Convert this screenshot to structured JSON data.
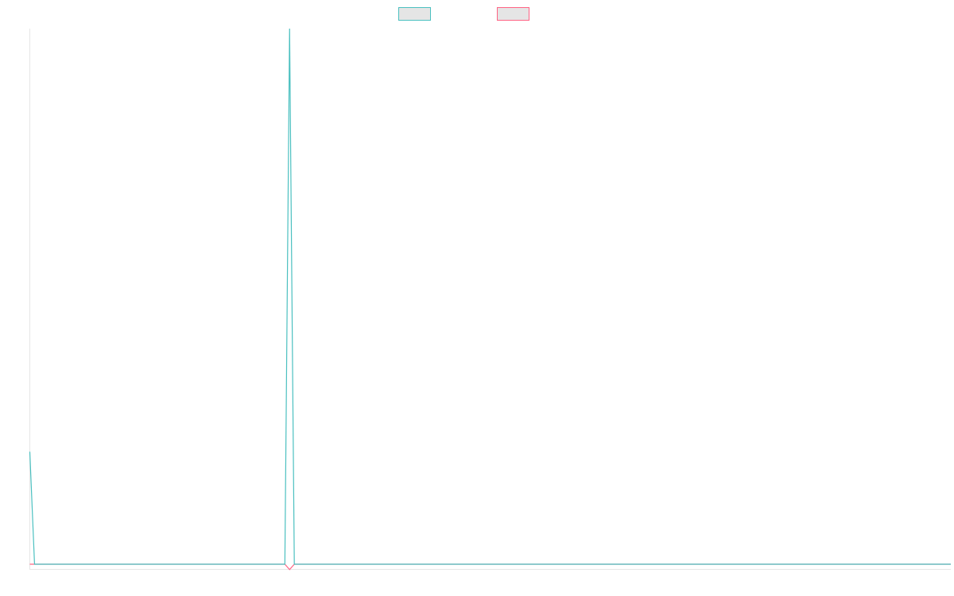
{
  "chart_data": {
    "type": "line",
    "title": "",
    "xlabel": "",
    "ylabel": "",
    "grid": false,
    "legend": "top-center",
    "ylim": [
      0,
      100
    ],
    "x": [
      0,
      1,
      2,
      3,
      4,
      5,
      6,
      7,
      8,
      9,
      10,
      11,
      12,
      13,
      14,
      15,
      16,
      17,
      18,
      19,
      20,
      21,
      22,
      23,
      24,
      25,
      26,
      27,
      28,
      29,
      30,
      31,
      32,
      33,
      34,
      35,
      36,
      37,
      38,
      39,
      40,
      41,
      42,
      43,
      44,
      45,
      46,
      47,
      48,
      49,
      50,
      51,
      52,
      53,
      54,
      55,
      56,
      57,
      58,
      59,
      60,
      61,
      62,
      63,
      64,
      65,
      66,
      67,
      68,
      69,
      70,
      71,
      72,
      73,
      74,
      75,
      76,
      77,
      78,
      79,
      80,
      81,
      82,
      83,
      84,
      85,
      86,
      87,
      88,
      89,
      90,
      91,
      92,
      93,
      94,
      95,
      96,
      97,
      98,
      99,
      100,
      101,
      102,
      103,
      104,
      105,
      106,
      107,
      108,
      109,
      110,
      111,
      112,
      113,
      114,
      115,
      116,
      117,
      118,
      119,
      120,
      121,
      122,
      123,
      124,
      125,
      126,
      127,
      128,
      129,
      130,
      131,
      132,
      133,
      134,
      135,
      136,
      137,
      138,
      139,
      140,
      141,
      142,
      143,
      144,
      145,
      146,
      147,
      148,
      149,
      150,
      151,
      152,
      153,
      154,
      155,
      156,
      157,
      158,
      159,
      160,
      161,
      162,
      163,
      164,
      165,
      166,
      167,
      168,
      169,
      170,
      171,
      172,
      173,
      174,
      175,
      176,
      177,
      178,
      179,
      180,
      181,
      182,
      183,
      184,
      185,
      186,
      187,
      188,
      189,
      190,
      191,
      192,
      193,
      194,
      195
    ],
    "series": [
      {
        "name": "",
        "color": "#4bc0c0",
        "fill": "#e5e5e5",
        "values": [
          21,
          0,
          0,
          0,
          0,
          0,
          0,
          0,
          0,
          0,
          0,
          0,
          0,
          0,
          0,
          0,
          0,
          0,
          0,
          0,
          0,
          0,
          0,
          0,
          0,
          0,
          0,
          0,
          0,
          0,
          0,
          0,
          0,
          0,
          0,
          0,
          0,
          0,
          0,
          0,
          0,
          0,
          0,
          0,
          0,
          0,
          0,
          0,
          0,
          0,
          0,
          0,
          0,
          0,
          0,
          100,
          0,
          0,
          0,
          0,
          0,
          0,
          0,
          0,
          0,
          0,
          0,
          0,
          0,
          0,
          0,
          0,
          0,
          0,
          0,
          0,
          0,
          0,
          0,
          0,
          0,
          0,
          0,
          0,
          0,
          0,
          0,
          0,
          0,
          0,
          0,
          0,
          0,
          0,
          0,
          0,
          0,
          0,
          0,
          0,
          0,
          0,
          0,
          0,
          0,
          0,
          0,
          0,
          0,
          0,
          0,
          0,
          0,
          0,
          0,
          0,
          0,
          0,
          0,
          0,
          0,
          0,
          0,
          0,
          0,
          0,
          0,
          0,
          0,
          0,
          0,
          0,
          0,
          0,
          0,
          0,
          0,
          0,
          0,
          0,
          0,
          0,
          0,
          0,
          0,
          0,
          0,
          0,
          0,
          0,
          0,
          0,
          0,
          0,
          0,
          0,
          0,
          0,
          0,
          0,
          0,
          0,
          0,
          0,
          0,
          0,
          0,
          0,
          0,
          0,
          0,
          0,
          0,
          0,
          0,
          0,
          0,
          0,
          0,
          0,
          0,
          0,
          0,
          0,
          0,
          0,
          0,
          0,
          0,
          0,
          0,
          0,
          0,
          0,
          0,
          0
        ]
      },
      {
        "name": "",
        "color": "#ff6384",
        "fill": "#e5e5e5",
        "values": [
          0,
          0,
          0,
          0,
          0,
          0,
          0,
          0,
          0,
          0,
          0,
          0,
          0,
          0,
          0,
          0,
          0,
          0,
          0,
          0,
          0,
          0,
          0,
          0,
          0,
          0,
          0,
          0,
          0,
          0,
          0,
          0,
          0,
          0,
          0,
          0,
          0,
          0,
          0,
          0,
          0,
          0,
          0,
          0,
          0,
          0,
          0,
          0,
          0,
          0,
          0,
          0,
          0,
          0,
          0,
          -1,
          0,
          0,
          0,
          0,
          0,
          0,
          0,
          0,
          0,
          0,
          0,
          0,
          0,
          0,
          0,
          0,
          0,
          0,
          0,
          0,
          0,
          0,
          0,
          0,
          0,
          0,
          0,
          0,
          0,
          0,
          0,
          0,
          0,
          0,
          0,
          0,
          0,
          0,
          0,
          0,
          0,
          0,
          0,
          0,
          0,
          0,
          0,
          0,
          0,
          0,
          0,
          0,
          0,
          0,
          0,
          0,
          0,
          0,
          0,
          0,
          0,
          0,
          0,
          0,
          0,
          0,
          0,
          0,
          0,
          0,
          0,
          0,
          0,
          0,
          0,
          0,
          0,
          0,
          0,
          0,
          0,
          0,
          0,
          0,
          0,
          0,
          0,
          0,
          0,
          0,
          0,
          0,
          0,
          0,
          0,
          0,
          0,
          0,
          0,
          0,
          0,
          0,
          0,
          0,
          0,
          0,
          0,
          0,
          0,
          0,
          0,
          0,
          0,
          0,
          0,
          0,
          0,
          0,
          0,
          0,
          0,
          0,
          0,
          0,
          0,
          0,
          0,
          0,
          0,
          0,
          0,
          0,
          0,
          0,
          0,
          0,
          0,
          0,
          0,
          0
        ]
      }
    ]
  }
}
